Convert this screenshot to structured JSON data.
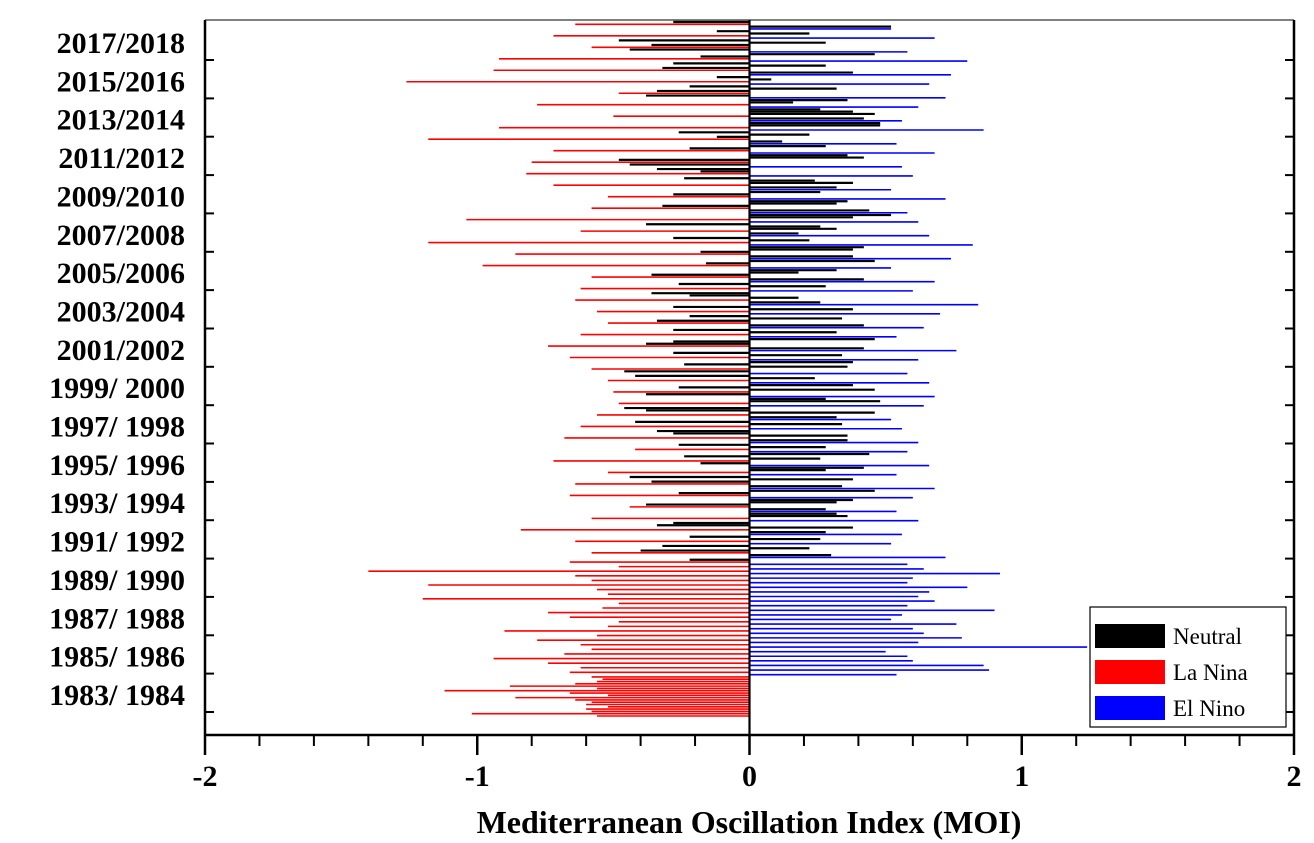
{
  "chart_data": {
    "type": "bar",
    "orientation": "horizontal",
    "title": "",
    "xlabel": "Mediterranean Oscillation Index (MOI)",
    "ylabel": "",
    "xlim": [
      -2,
      2
    ],
    "x_ticks": [
      "-2",
      "-1",
      "0",
      "1",
      "2"
    ],
    "y_tick_labels": [
      "2017/2018",
      "2015/2016",
      "2013/2014",
      "2011/2012",
      "2009/2010",
      "2007/2008",
      "2005/2006",
      "2003/2004",
      "2001/2002",
      "1999/ 2000",
      "1997/ 1998",
      "1995/ 1996",
      "1993/ 1994",
      "1991/ 1992",
      "1989/ 1990",
      "1987/ 1988",
      "1985/ 1986",
      "1983/ 1984"
    ],
    "legend": {
      "position": "bottom-right",
      "entries": [
        {
          "label": "Neutral",
          "color": "#000000"
        },
        {
          "label": "La Nina",
          "color": "#ff0000"
        },
        {
          "label": "El Nino",
          "color": "#0000ff"
        }
      ]
    },
    "series": [
      {
        "name": "Neutral",
        "color": "#000000",
        "values": [
          -0.28,
          0.52,
          -0.12,
          0.22,
          -0.48,
          0.28,
          -0.36,
          -0.44,
          0.46,
          -0.18,
          -0.28,
          0.28,
          -0.32,
          0.38,
          -0.12,
          0.08,
          -0.22,
          0.32,
          -0.34,
          -0.38,
          0.36,
          0.16,
          0.26,
          0.38,
          0.46,
          0.42,
          0.48,
          0.48,
          -0.26,
          0.22,
          -0.12,
          0.12,
          0.28,
          -0.22,
          0.36,
          0.42,
          -0.48,
          -0.44,
          -0.34,
          -0.18,
          -0.24,
          0.24,
          0.38,
          0.32,
          0.26,
          -0.28,
          0.36,
          0.32,
          -0.32,
          0.44,
          0.52,
          0.38,
          -0.38,
          0.26,
          0.32,
          0.18,
          -0.28,
          0.22,
          0.42,
          0.38,
          -0.18,
          0.38,
          0.46,
          -0.16,
          0.32,
          0.18,
          -0.36,
          0.42,
          -0.26,
          0.28,
          -0.36,
          -0.22,
          0.18,
          0.26,
          -0.28,
          0.38,
          -0.22,
          0.34,
          -0.34,
          0.42,
          -0.28,
          0.32,
          0.46,
          -0.28,
          -0.38,
          0.42,
          -0.28,
          0.34,
          0.38,
          -0.24,
          0.36,
          -0.46,
          -0.42,
          0.24,
          0.38,
          -0.26,
          0.46,
          -0.38,
          0.28,
          0.48,
          -0.46,
          -0.38,
          0.46,
          0.32,
          -0.42,
          0.34,
          -0.34,
          -0.28,
          0.36,
          0.36,
          -0.26,
          0.28,
          0.44,
          -0.24,
          0.26,
          -0.18,
          0.42,
          0.28,
          -0.44,
          0.38,
          -0.36,
          0.34,
          0.46,
          -0.26,
          0.38,
          0.32,
          -0.38,
          0.28,
          0.32,
          0.36,
          -0.28,
          -0.34,
          0.38,
          0.28,
          -0.22,
          0.26,
          -0.32,
          0.22,
          -0.4,
          0.3,
          -0.22
        ]
      },
      {
        "name": "La Nina",
        "color": "#ff0000",
        "values": [
          -0.64,
          -0.72,
          -0.58,
          -0.92,
          -0.94,
          -1.26,
          -0.48,
          -0.78,
          -0.5,
          -0.92,
          -1.18,
          -0.72,
          -0.8,
          -0.82,
          -0.72,
          -0.52,
          -0.58,
          -1.04,
          -0.62,
          -1.18,
          -0.86,
          -0.98,
          -0.58,
          -0.62,
          -0.64,
          -0.56,
          -0.52,
          -0.62,
          -0.74,
          -0.66,
          -0.58,
          -0.52,
          -0.5,
          -0.48,
          -0.56,
          -0.62,
          -0.68,
          -0.42,
          -0.72,
          -0.52,
          -0.64,
          -0.66,
          -0.44,
          -0.58,
          -0.84,
          -0.64,
          -0.58,
          -0.66,
          -0.48,
          -1.4,
          -0.64,
          -0.58,
          -1.18,
          -0.56,
          -0.52,
          -1.2,
          -0.48,
          -0.54,
          -0.74,
          -0.66,
          -0.48,
          -0.52,
          -0.9,
          -0.56,
          -0.78,
          -0.62,
          -0.58,
          -0.68,
          -0.94,
          -0.74,
          -0.62,
          -0.66,
          -0.58,
          -0.54,
          -0.56,
          -0.64,
          -0.88,
          -0.56,
          -1.12,
          -0.66,
          -0.52,
          -0.86,
          -0.64,
          -0.58,
          -0.6,
          -0.52,
          -0.6,
          -0.58,
          -1.02,
          -0.56
        ]
      },
      {
        "name": "El Nino",
        "color": "#0000ff",
        "values": [
          0.52,
          0.68,
          0.58,
          0.8,
          0.74,
          0.66,
          0.72,
          0.62,
          0.56,
          0.86,
          0.54,
          0.68,
          0.56,
          0.6,
          0.52,
          0.72,
          0.58,
          0.62,
          0.66,
          0.82,
          0.74,
          0.52,
          0.68,
          0.6,
          0.84,
          0.7,
          0.64,
          0.54,
          0.76,
          0.62,
          0.58,
          0.66,
          0.68,
          0.64,
          0.52,
          0.56,
          0.62,
          0.58,
          0.66,
          0.54,
          0.68,
          0.6,
          0.54,
          0.62,
          0.56,
          0.52,
          0.72,
          0.58,
          0.64,
          0.92,
          0.6,
          0.58,
          0.8,
          0.66,
          0.62,
          0.68,
          0.58,
          0.9,
          0.56,
          0.52,
          0.76,
          0.6,
          0.64,
          0.78,
          0.62,
          1.24,
          0.5,
          0.58,
          0.6,
          0.86,
          0.88,
          0.54
        ]
      }
    ]
  }
}
